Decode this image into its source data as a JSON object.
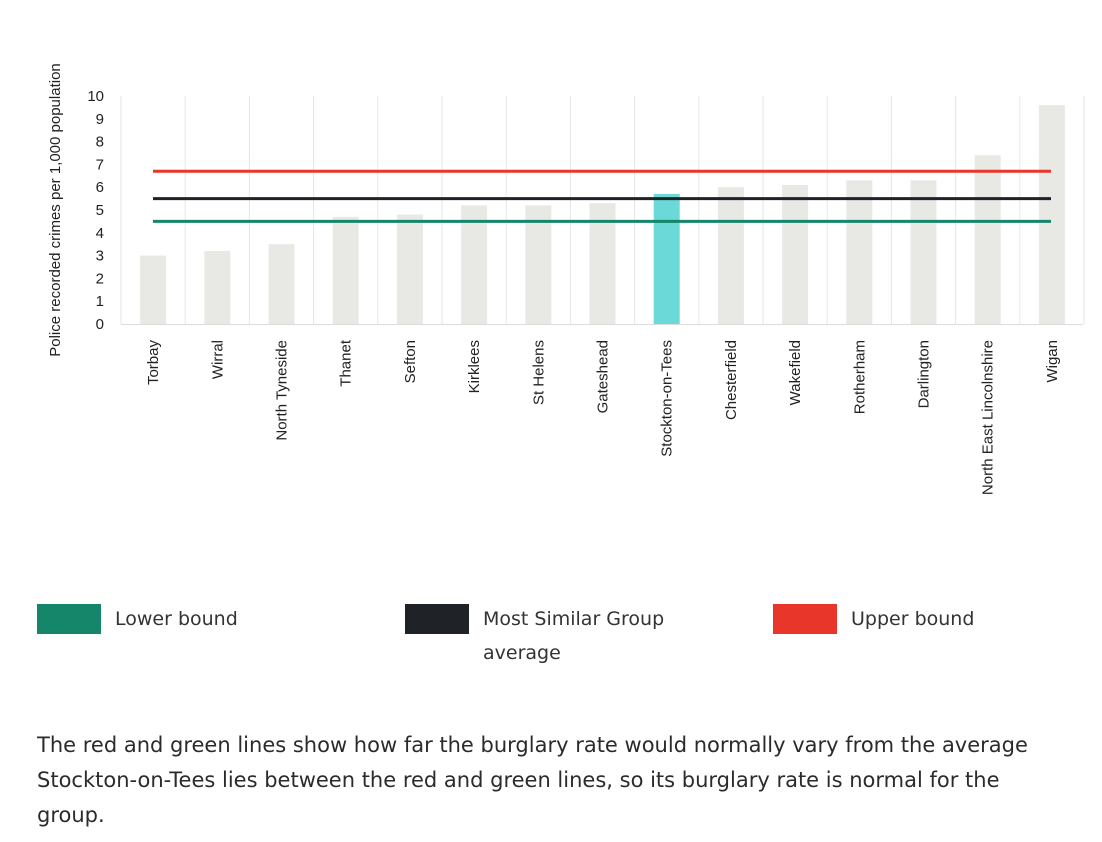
{
  "chart_data": {
    "type": "bar",
    "ylabel": "Police recorded crimes per 1,000 population",
    "xlabel": "",
    "ylim": [
      0,
      10
    ],
    "yticks": [
      0,
      1,
      2,
      3,
      4,
      5,
      6,
      7,
      8,
      9,
      10
    ],
    "grid": true,
    "categories": [
      "Torbay",
      "Wirral",
      "North Tyneside",
      "Thanet",
      "Sefton",
      "Kirklees",
      "St Helens",
      "Gateshead",
      "Stockton-on-Tees",
      "Chesterfield",
      "Wakefield",
      "Rotherham",
      "Darlington",
      "North East Lincolnshire",
      "Wigan"
    ],
    "values": [
      3.0,
      3.2,
      3.5,
      4.7,
      4.8,
      5.2,
      5.2,
      5.3,
      5.7,
      6.0,
      6.1,
      6.3,
      6.3,
      7.4,
      9.6
    ],
    "highlight": "Stockton-on-Tees",
    "bar_color": "#e8e8e4",
    "highlight_color": "#6ad9d7",
    "reference_lines": [
      {
        "name": "Lower bound",
        "value": 4.5,
        "color": "#15866a"
      },
      {
        "name": "Most Similar Group average",
        "value": 5.5,
        "color": "#1f2226"
      },
      {
        "name": "Upper bound",
        "value": 6.7,
        "color": "#e8362a"
      }
    ],
    "legend_position": "bottom"
  },
  "legend": {
    "lower_label": "Lower bound",
    "average_label_line1": "Most Similar Group",
    "average_label_line2": "average",
    "upper_label": "Upper bound",
    "lower_color": "#15866a",
    "average_color": "#1f2226",
    "upper_color": "#e8362a"
  },
  "caption": {
    "line1": "The red and green lines show how far the burglary rate would normally vary from the average",
    "line2": "Stockton-on-Tees lies between the red and green lines, so its burglary rate is normal for the",
    "line3": "group."
  }
}
